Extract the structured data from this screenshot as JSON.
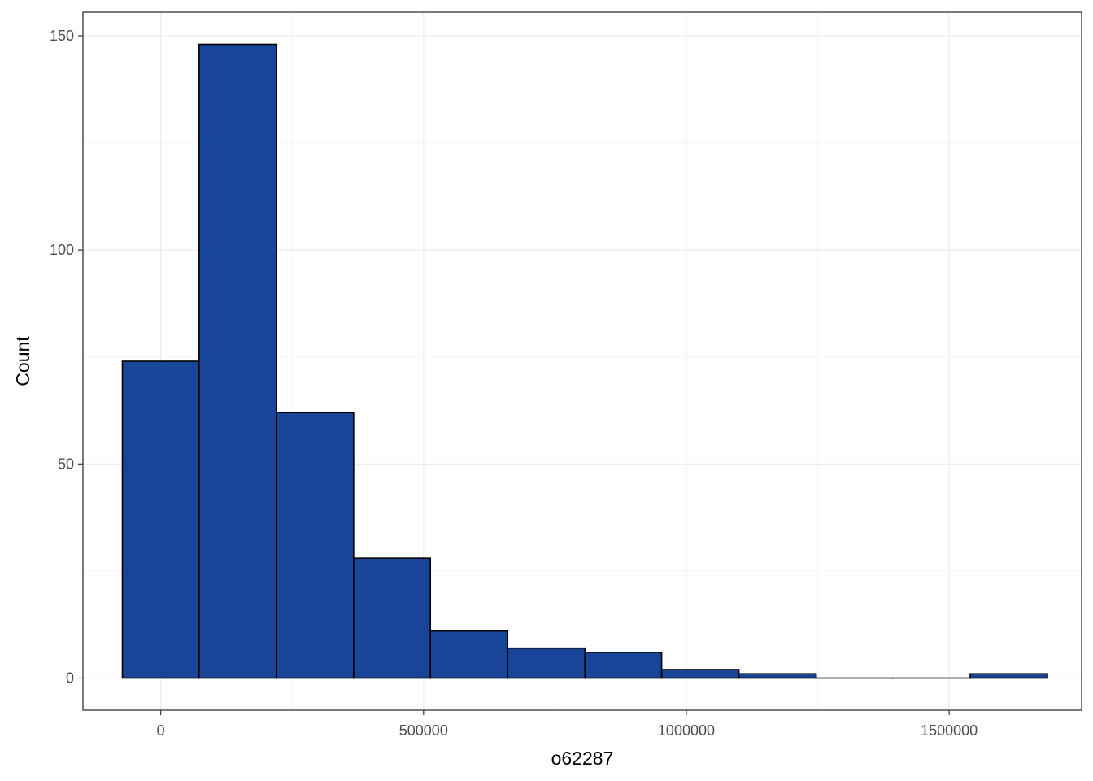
{
  "chart_data": {
    "type": "bar",
    "subtype": "histogram",
    "xlabel": "o62287",
    "ylabel": "Count",
    "xlim": [
      -148000,
      1752000
    ],
    "ylim": [
      -7.5,
      155.5
    ],
    "x_ticks": [
      0,
      500000,
      1000000,
      1500000
    ],
    "x_tick_labels": [
      "0",
      "500000",
      "1000000",
      "1500000"
    ],
    "y_ticks": [
      0,
      50,
      100,
      150
    ],
    "y_tick_labels": [
      "0",
      "50",
      "100",
      "150"
    ],
    "grid": true,
    "bins": [
      {
        "x0": -73000,
        "x1": 73000,
        "count": 74
      },
      {
        "x0": 73000,
        "x1": 220000,
        "count": 148
      },
      {
        "x0": 220000,
        "x1": 367000,
        "count": 62
      },
      {
        "x0": 367000,
        "x1": 513000,
        "count": 28
      },
      {
        "x0": 513000,
        "x1": 660000,
        "count": 11
      },
      {
        "x0": 660000,
        "x1": 807000,
        "count": 7
      },
      {
        "x0": 807000,
        "x1": 953000,
        "count": 6
      },
      {
        "x0": 953000,
        "x1": 1100000,
        "count": 2
      },
      {
        "x0": 1100000,
        "x1": 1247000,
        "count": 1
      },
      {
        "x0": 1247000,
        "x1": 1393000,
        "count": 0
      },
      {
        "x0": 1393000,
        "x1": 1540000,
        "count": 0
      },
      {
        "x0": 1540000,
        "x1": 1687000,
        "count": 1
      }
    ]
  },
  "colors": {
    "bar_fill": "#194599",
    "bar_stroke": "#000000",
    "grid_major": "#ebebeb",
    "grid_minor": "#f5f5f5",
    "panel_border": "#333333"
  }
}
